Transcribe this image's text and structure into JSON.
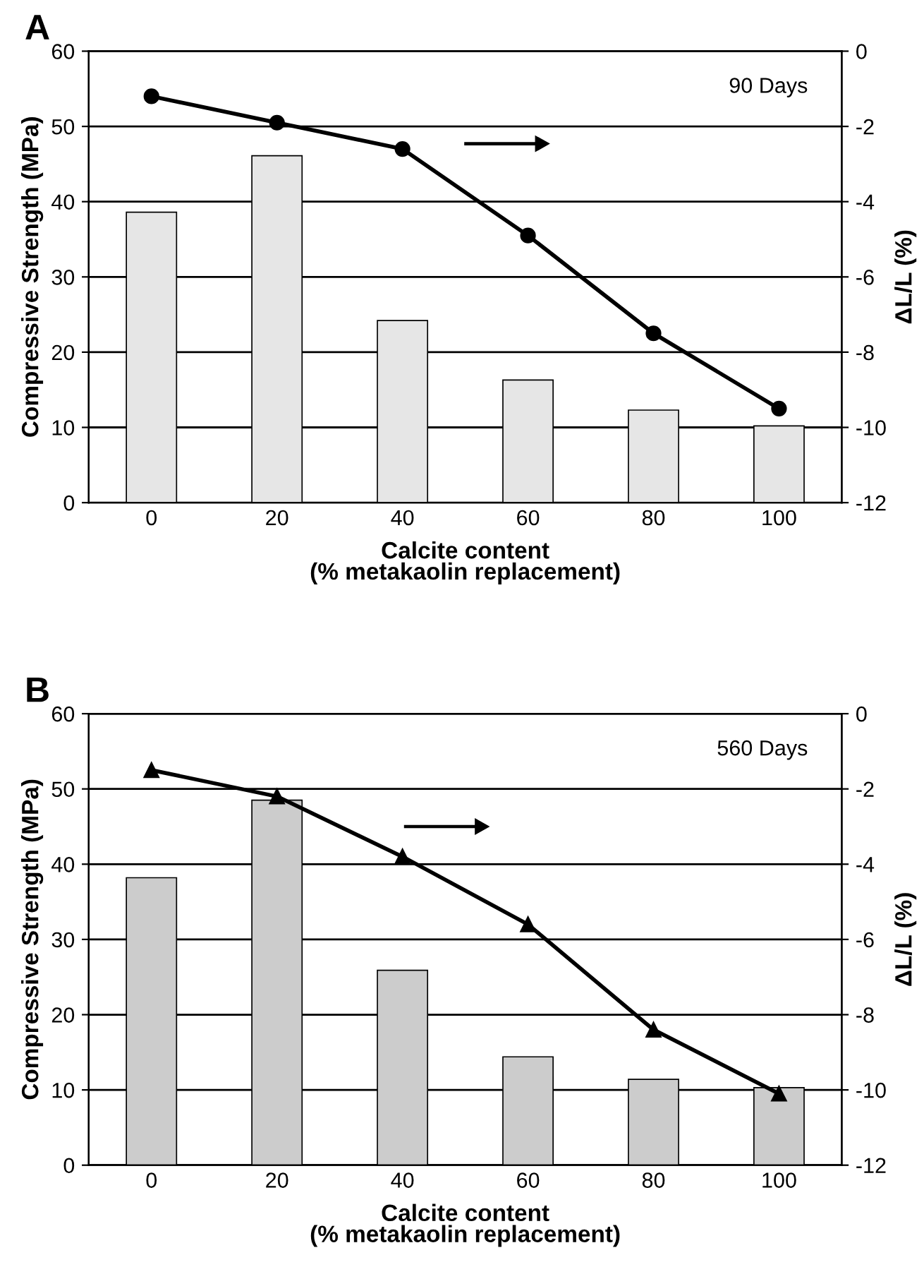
{
  "chart_data": [
    {
      "type": "bar",
      "xlabel": "Calcite content\n(% metakaolin replacement)",
      "ylabel": "Compressive Strength (MPa)",
      "y2label": "ΔL/L (%)",
      "annotations": [
        "A",
        "90 Days"
      ],
      "categories": [
        "0",
        "20",
        "40",
        "60",
        "80",
        "100"
      ],
      "series": [
        {
          "color": "#e6e6e6",
          "values": [
            38.6,
            46.1,
            24.2,
            16.3,
            12.3,
            10.2
          ]
        },
        {
          "type": "line",
          "axis": "y2",
          "color": "#000000",
          "marker": "circle",
          "values": [
            -1.2,
            -1.9,
            -2.6,
            -4.9,
            -7.5,
            -9.5
          ]
        }
      ],
      "ylim": [
        0,
        60
      ],
      "yticks": [
        0,
        10,
        20,
        30,
        40,
        50,
        60
      ],
      "y2lim": [
        -12,
        0
      ],
      "y2ticks": [
        -12,
        -10,
        -8,
        -6,
        -4,
        -2,
        0
      ],
      "grid": "y",
      "legend": false
    },
    {
      "type": "bar",
      "xlabel": "Calcite content\n(% metakaolin replacement)",
      "ylabel": "Compressive Strength (MPa)",
      "y2label": "ΔL/L (%)",
      "annotations": [
        "B",
        "560 Days"
      ],
      "categories": [
        "0",
        "20",
        "40",
        "60",
        "80",
        "100"
      ],
      "series": [
        {
          "color": "#cccccc",
          "values": [
            38.2,
            48.5,
            25.9,
            14.4,
            11.4,
            10.3
          ]
        },
        {
          "type": "line",
          "axis": "y2",
          "color": "#000000",
          "marker": "triangle",
          "values": [
            -1.5,
            -2.2,
            -3.8,
            -5.6,
            -8.4,
            -10.1
          ]
        }
      ],
      "ylim": [
        0,
        60
      ],
      "yticks": [
        0,
        10,
        20,
        30,
        40,
        50,
        60
      ],
      "y2lim": [
        -12,
        0
      ],
      "y2ticks": [
        -12,
        -10,
        -8,
        -6,
        -4,
        -2,
        0
      ],
      "grid": "y",
      "legend": false
    }
  ]
}
